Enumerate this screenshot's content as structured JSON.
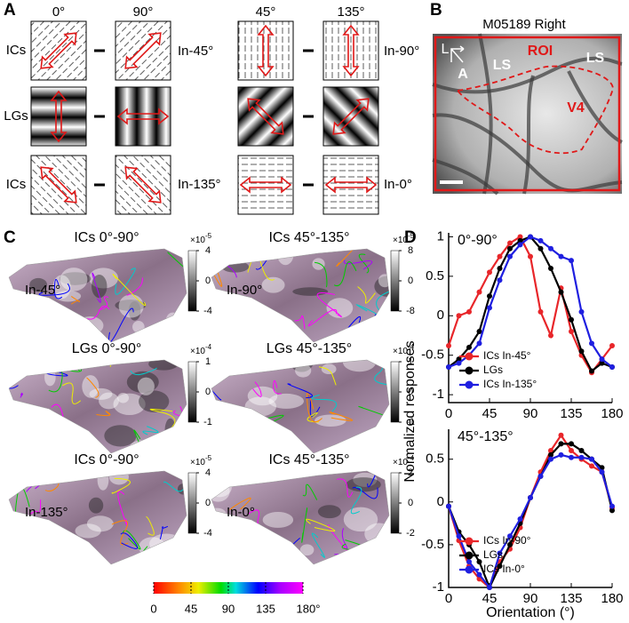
{
  "panel_a": {
    "label": "A",
    "columns": [
      "0°",
      "90°",
      "45°",
      "135°"
    ],
    "rows": [
      "ICs",
      "LGs",
      "ICs"
    ],
    "notes": [
      "In-45°",
      "In-90°",
      "In-135°",
      "In-0°"
    ]
  },
  "panel_b": {
    "label": "B",
    "title": "M05189 Right",
    "labels": [
      "L",
      "A",
      "LS",
      "ROI",
      "LS",
      "V4"
    ]
  },
  "panel_c": {
    "label": "C",
    "maps": [
      {
        "title": "ICs 0°-90°",
        "note": "In-45°",
        "scale": "×10",
        "exponent": -5,
        "ticks": [
          4,
          0,
          -4
        ]
      },
      {
        "title": "ICs 45°-135°",
        "note": "In-90°",
        "scale": "×10",
        "exponent": -5,
        "ticks": [
          8,
          0,
          -8
        ]
      },
      {
        "title": "LGs 0°-90°",
        "scale": "×10",
        "exponent": -4,
        "ticks": [
          1,
          0,
          -1
        ]
      },
      {
        "title": "LGs 45°-135°",
        "scale": "×10",
        "exponent": -4,
        "ticks": [
          1,
          0,
          -1
        ]
      },
      {
        "title": "ICs 0°-90°",
        "note": "In-135°",
        "scale": "×10",
        "exponent": -5,
        "ticks": [
          4,
          0,
          -4
        ]
      },
      {
        "title": "ICs 45°-135°",
        "note": "In-0°",
        "scale": "×10",
        "exponent": -4,
        "ticks": [
          2,
          0,
          -2
        ]
      }
    ],
    "hue_range": [
      0,
      180
    ],
    "hue_ticks": [
      0,
      45,
      90,
      135,
      {
        "value": 180,
        "label": "180°"
      }
    ]
  },
  "panel_d": {
    "label": "D"
  },
  "chart_data": [
    {
      "type": "line",
      "title": "0°-90°",
      "y_label": "Normalized responses",
      "x": [
        0,
        11.25,
        22.5,
        33.75,
        45,
        56.25,
        67.5,
        78.75,
        90,
        101.25,
        112.5,
        123.75,
        135,
        146.25,
        157.5,
        168.75,
        180
      ],
      "xlim": [
        0,
        180
      ],
      "xticks": [
        0,
        45,
        90,
        135,
        180
      ],
      "ylim": [
        -1.1,
        1.05
      ],
      "yticks": [
        1,
        0.5,
        0,
        -0.5,
        -1
      ],
      "legend": "lower center",
      "series": [
        {
          "name": "ICs In-45°",
          "color": "#e8262a",
          "values": [
            -0.38,
            0.0,
            0.05,
            0.3,
            0.55,
            0.75,
            0.92,
            1.0,
            0.75,
            0.05,
            -0.25,
            0.35,
            -0.2,
            -0.5,
            -0.72,
            -0.55,
            -0.38
          ]
        },
        {
          "name": "LGs",
          "color": "#000000",
          "values": [
            -0.65,
            -0.55,
            -0.4,
            -0.2,
            0.25,
            0.6,
            0.85,
            0.95,
            1.0,
            0.85,
            0.6,
            0.3,
            -0.05,
            -0.45,
            -0.7,
            -0.6,
            -0.65
          ]
        },
        {
          "name": "ICs In-135°",
          "color": "#1f1fe0",
          "values": [
            -0.65,
            -0.6,
            -0.5,
            -0.35,
            0.1,
            0.45,
            0.75,
            0.9,
            1.0,
            0.95,
            0.85,
            0.75,
            0.7,
            0.05,
            -0.35,
            -0.55,
            -0.65
          ]
        }
      ]
    },
    {
      "type": "line",
      "title": "45°-135°",
      "x_label": "Orientation (°)",
      "x": [
        0,
        11.25,
        22.5,
        33.75,
        45,
        56.25,
        67.5,
        78.75,
        90,
        101.25,
        112.5,
        123.75,
        135,
        146.25,
        157.5,
        168.75,
        180
      ],
      "xlim": [
        0,
        180
      ],
      "xticks": [
        0,
        45,
        90,
        135,
        180
      ],
      "ylim": [
        -1,
        0.85
      ],
      "yticks": [
        0.5,
        0,
        -0.5,
        -1
      ],
      "legend": "lower center",
      "series": [
        {
          "name": "ICs In-90°",
          "color": "#e8262a",
          "values": [
            -0.05,
            -0.45,
            -0.75,
            -0.9,
            -1.0,
            -0.7,
            -0.55,
            -0.3,
            0.05,
            0.35,
            0.6,
            0.78,
            0.6,
            0.5,
            0.42,
            0.35,
            -0.07
          ]
        },
        {
          "name": "LGs",
          "color": "#000000",
          "values": [
            -0.05,
            -0.35,
            -0.5,
            -0.7,
            -1.0,
            -0.75,
            -0.5,
            -0.25,
            0.05,
            0.3,
            0.55,
            0.68,
            0.68,
            0.6,
            0.5,
            0.4,
            -0.1
          ]
        },
        {
          "name": "ICs In-0°",
          "color": "#1f1fe0",
          "values": [
            -0.05,
            -0.4,
            -0.7,
            -0.85,
            -1.0,
            -0.6,
            -0.4,
            -0.2,
            0.05,
            0.3,
            0.5,
            0.55,
            0.52,
            0.52,
            0.5,
            0.35,
            -0.05
          ]
        }
      ]
    }
  ]
}
